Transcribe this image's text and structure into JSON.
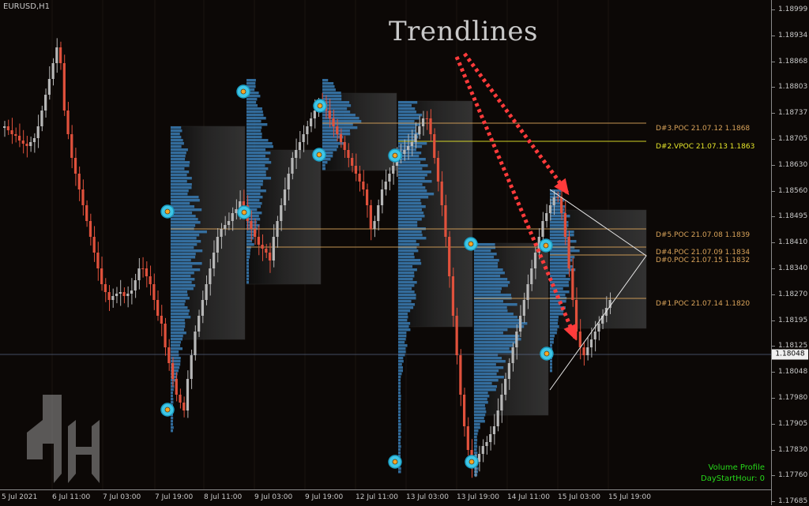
{
  "chart": {
    "symbol_timeframe": "EURUSD,H1",
    "title_overlay": "Trendlines",
    "price_ticks": [
      "1.18999",
      "1.18934",
      "1.18868",
      "1.18803",
      "1.18737",
      "1.18705",
      "1.18630",
      "1.18560",
      "1.18495",
      "1.18410",
      "1.18340",
      "1.18270",
      "1.18195",
      "1.18125",
      "1.18048",
      "1.17980",
      "1.17905",
      "1.17830",
      "1.17760",
      "1.17685"
    ],
    "current_price": "1.18048",
    "time_ticks": [
      "5 Jul 2021",
      "6 Jul 11:00",
      "7 Jul 03:00",
      "7 Jul 19:00",
      "8 Jul 11:00",
      "9 Jul 03:00",
      "9 Jul 19:00",
      "12 Jul 11:00",
      "13 Jul 03:00",
      "13 Jul 19:00",
      "14 Jul 11:00",
      "15 Jul 03:00",
      "15 Jul 19:00"
    ],
    "poc_labels": [
      {
        "text": "D#3.POC 21.07.12 1.1868",
        "color": "#d9a35a"
      },
      {
        "text": "D#2.VPOC 21.07.13 1.1863",
        "color": "#e6e62a"
      },
      {
        "text": "D#5.POC 21.07.08 1.1839",
        "color": "#d9a35a"
      },
      {
        "text": "D#4.POC 21.07.09 1.1834",
        "color": "#d9a35a"
      },
      {
        "text": "D#0.POC 21.07.15 1.1832",
        "color": "#d9a35a"
      },
      {
        "text": "D#1.POC 21.07.14 1.1820",
        "color": "#d9a35a"
      }
    ],
    "indicator_info": [
      "Volume Profile",
      "DayStartHour: 0"
    ],
    "colors": {
      "background": "#0c0806",
      "bull_candle": "#b7b7b7",
      "bear_candle": "#e0513c",
      "volume_profile": "#3a7db5",
      "poc_line": "#d9a35a",
      "vpoc_line": "#e6e62a",
      "arrow": "#ff3b3b",
      "marker": "#3fc6e6",
      "indicator_text": "#27d81a"
    },
    "icons": [
      "trendline-arrow-icon",
      "signal-marker-icon",
      "logo-icon"
    ]
  }
}
